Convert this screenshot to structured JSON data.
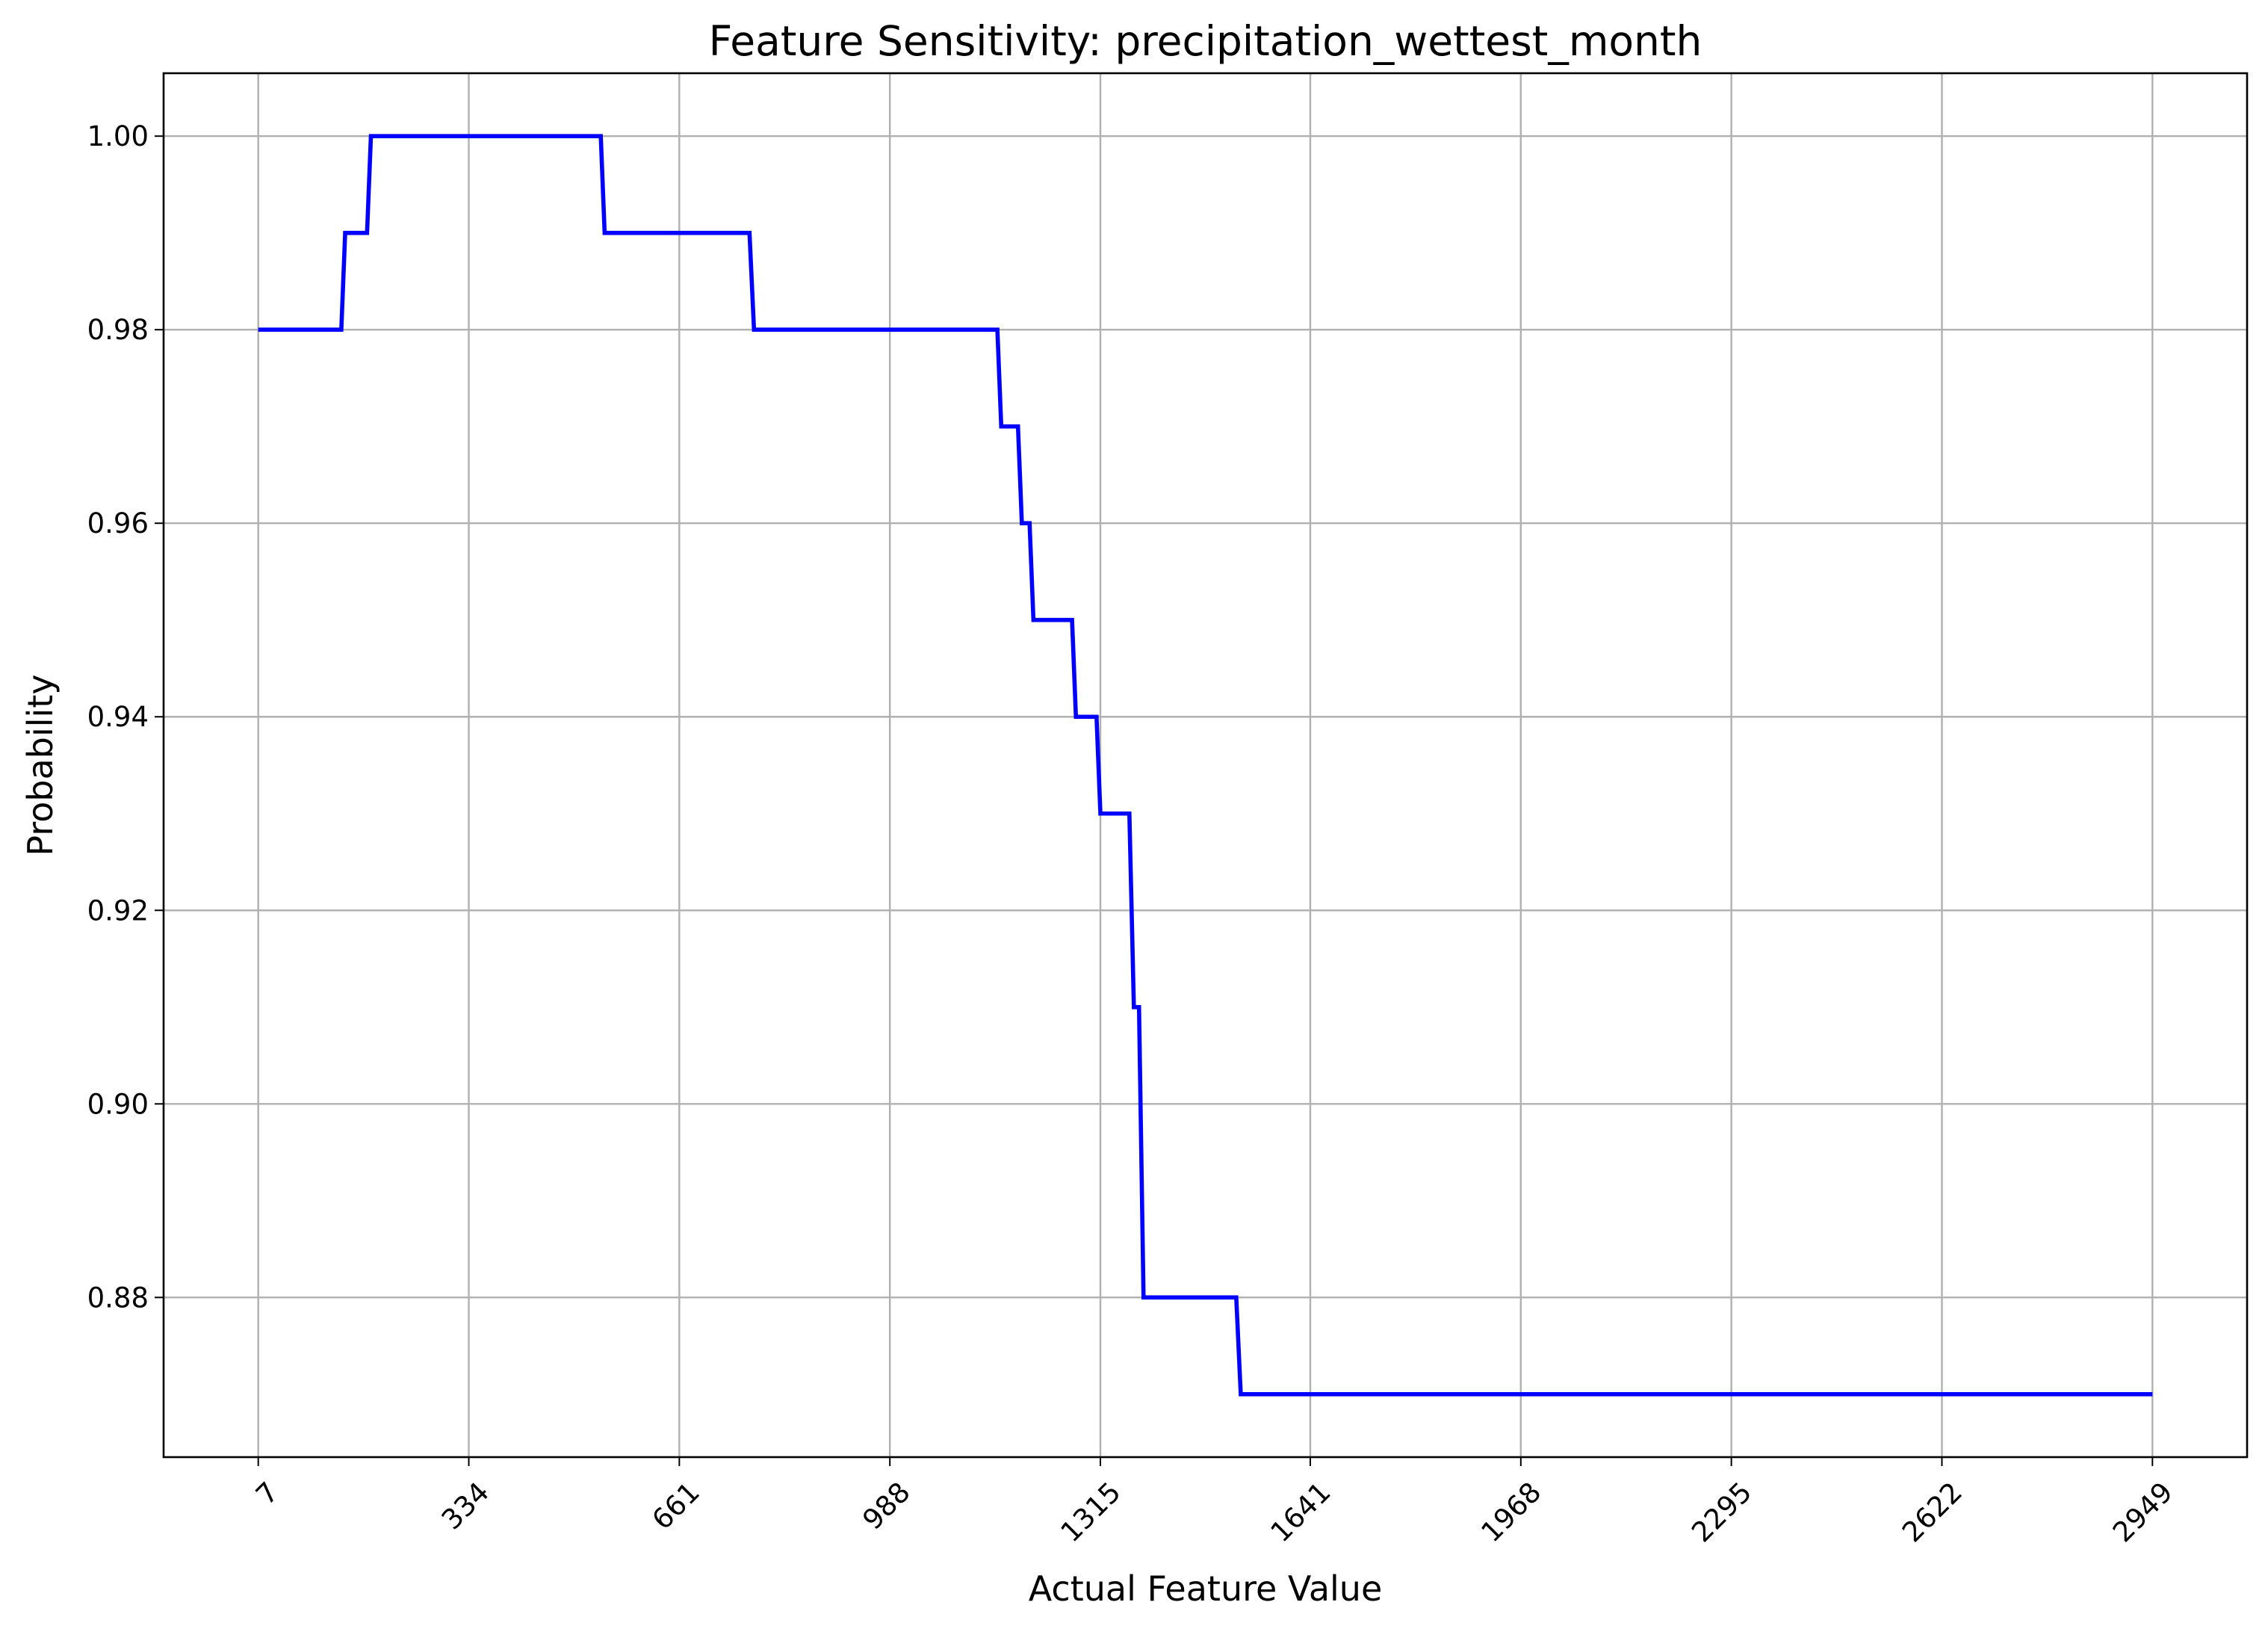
{
  "chart_data": {
    "type": "line",
    "title": "Feature Sensitivity: precipitation_wettest_month",
    "xlabel": "Actual Feature Value",
    "ylabel": "Probability",
    "xlim": [
      -140,
      3096
    ],
    "ylim": [
      0.8635,
      1.0065
    ],
    "grid": true,
    "x_ticks": [
      7,
      334,
      661,
      988,
      1315,
      1641,
      1968,
      2295,
      2622,
      2949
    ],
    "x_tick_labels": [
      "7",
      "334",
      "661",
      "988",
      "1315",
      "1641",
      "1968",
      "2295",
      "2622",
      "2949"
    ],
    "y_ticks": [
      0.88,
      0.9,
      0.92,
      0.94,
      0.96,
      0.98,
      1.0
    ],
    "y_tick_labels": [
      "0.88",
      "0.90",
      "0.92",
      "0.94",
      "0.96",
      "0.98",
      "1.00"
    ],
    "series": [
      {
        "name": "probability",
        "color": "#0000ff",
        "x": [
          7,
          136,
          142,
          176,
          182,
          539,
          545,
          770,
          777,
          1155,
          1161,
          1187,
          1193,
          1205,
          1211,
          1271,
          1277,
          1309,
          1315,
          1360,
          1367,
          1375,
          1382,
          1526,
          1533,
          2949
        ],
        "y": [
          0.98,
          0.98,
          0.99,
          0.99,
          1.0,
          1.0,
          0.99,
          0.99,
          0.98,
          0.98,
          0.97,
          0.97,
          0.96,
          0.96,
          0.95,
          0.95,
          0.94,
          0.94,
          0.93,
          0.93,
          0.91,
          0.91,
          0.88,
          0.88,
          0.87,
          0.87
        ]
      }
    ]
  }
}
